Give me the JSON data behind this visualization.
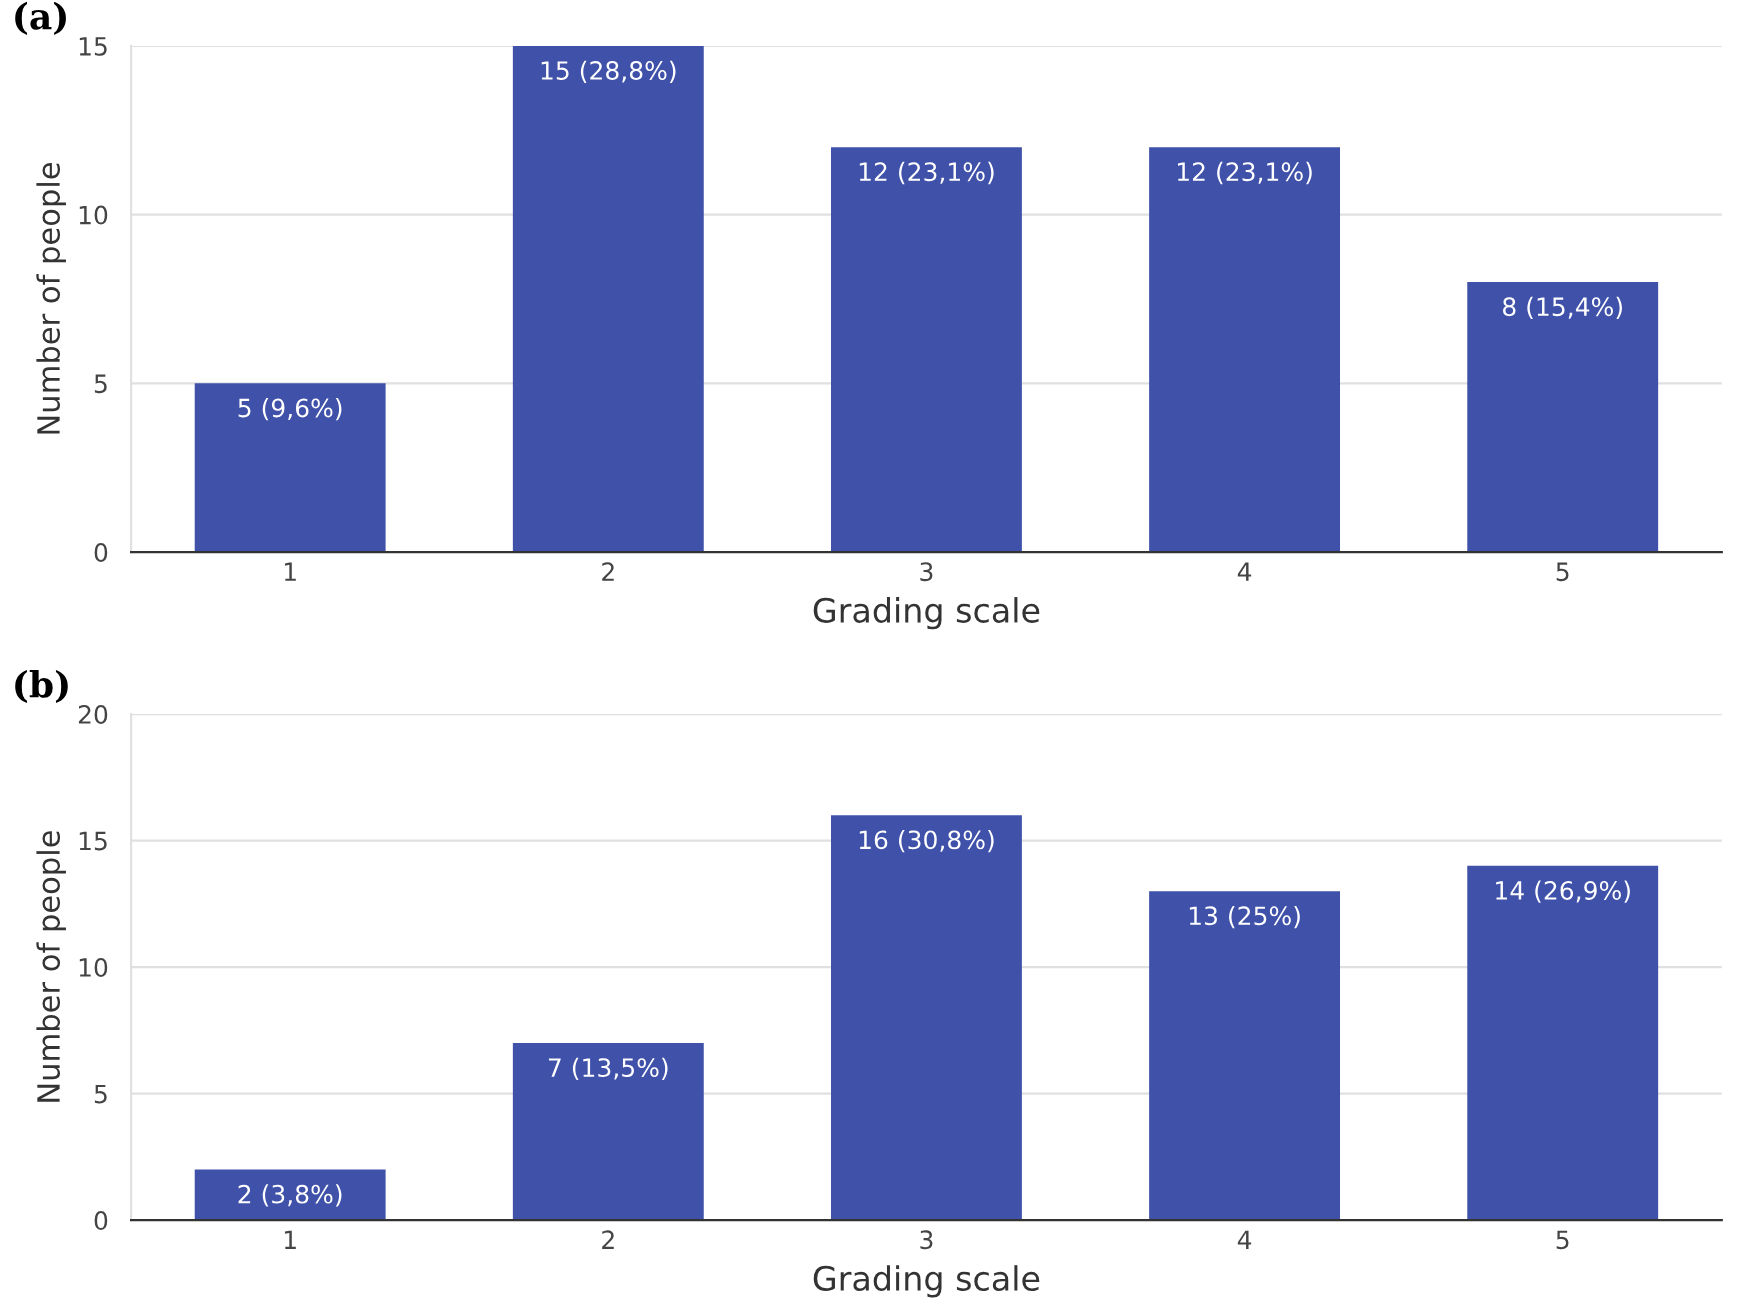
{
  "chart_data": [
    {
      "type": "bar",
      "title": "(a)",
      "xlabel": "Grading scale",
      "ylabel": "Number of people",
      "categories": [
        "1",
        "2",
        "3",
        "4",
        "5"
      ],
      "values": [
        5,
        15,
        12,
        12,
        8
      ],
      "value_labels": [
        "5 (9,6%)",
        "15 (28,8%)",
        "12 (23,1%)",
        "12 (23,1%)",
        "8 (15,4%)"
      ],
      "color": "#3f51a9",
      "ylim": [
        0,
        15
      ],
      "yticks": [
        0,
        5,
        10,
        15
      ],
      "grid": "y",
      "legend": false
    },
    {
      "type": "bar",
      "title": "(b)",
      "xlabel": "Grading scale",
      "ylabel": "Number of people",
      "categories": [
        "1",
        "2",
        "3",
        "4",
        "5"
      ],
      "values": [
        2,
        7,
        16,
        13,
        14
      ],
      "value_labels": [
        "2 (3,8%)",
        "7 (13,5%)",
        "16 (30,8%)",
        "13 (25%)",
        "14 (26,9%)"
      ],
      "color": "#3f51a9",
      "ylim": [
        0,
        20
      ],
      "yticks": [
        0,
        5,
        10,
        15,
        20
      ],
      "grid": "y",
      "legend": false
    }
  ]
}
